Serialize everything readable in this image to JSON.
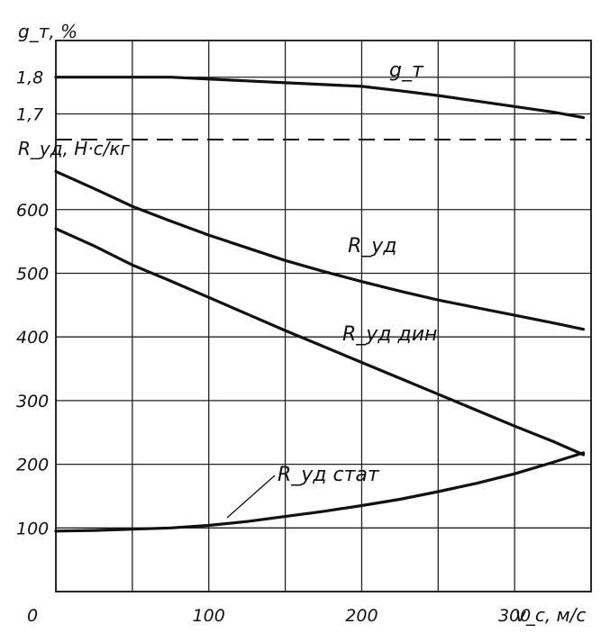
{
  "chart_data": {
    "type": "line",
    "x": [
      0,
      25,
      50,
      75,
      100,
      125,
      150,
      175,
      200,
      225,
      250,
      275,
      300,
      325,
      345
    ],
    "xticks": [
      "0",
      "100",
      "200",
      "300"
    ],
    "xlabel": "v_c, м/с",
    "xlim": [
      0,
      350
    ],
    "grid": true,
    "panels": [
      {
        "id": "top",
        "ylabel": "g_т, %",
        "ylim": [
          1.63,
          1.9
        ],
        "yticks": [
          {
            "value": 1.8,
            "label": "1,8"
          },
          {
            "value": 1.7,
            "label": "1,7"
          }
        ],
        "series": [
          {
            "name": "g_т",
            "values": [
              1.8,
              1.8,
              1.8,
              1.8,
              1.795,
              1.79,
              1.785,
              1.78,
              1.775,
              1.763,
              1.75,
              1.735,
              1.72,
              1.705,
              1.69
            ]
          }
        ]
      },
      {
        "id": "bottom",
        "ylabel": "R_уд, Н·с/кг",
        "ylim": [
          0,
          710
        ],
        "yticks": [
          {
            "value": 100,
            "label": "100"
          },
          {
            "value": 200,
            "label": "200"
          },
          {
            "value": 300,
            "label": "300"
          },
          {
            "value": 400,
            "label": "400"
          },
          {
            "value": 500,
            "label": "500"
          },
          {
            "value": 600,
            "label": "600"
          }
        ],
        "series": [
          {
            "name": "R_уд",
            "values": [
              660,
              633,
              605,
              582,
              560,
              540,
              520,
              503,
              487,
              472,
              458,
              446,
              434,
              422,
              412
            ]
          },
          {
            "name": "R_уд дин",
            "values": [
              570,
              543,
              513,
              488,
              462,
              436,
              410,
              385,
              360,
              335,
              310,
              285,
              260,
              236,
              215
            ]
          },
          {
            "name": "R_уд стат",
            "values": [
              95,
              96,
              98,
              100,
              104,
              110,
              118,
              126,
              135,
              145,
              157,
              170,
              185,
              203,
              218
            ]
          }
        ]
      }
    ]
  }
}
